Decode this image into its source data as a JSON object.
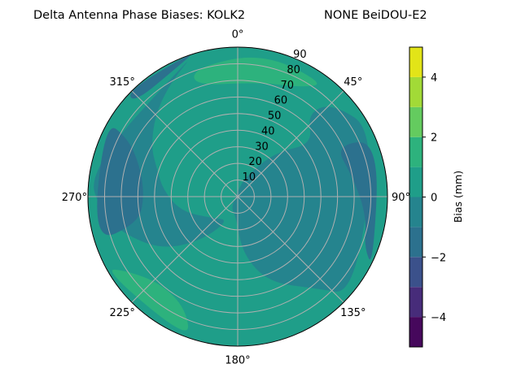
{
  "chart_data": {
    "type": "contour",
    "projection": "polar",
    "title_left": "Delta Antenna Phase Biases: KOLK2",
    "title_right": "NONE BeiDOU-E2",
    "angle_direction": "clockwise",
    "angle_zero": "north",
    "angle_ticks": [
      "0°",
      "45°",
      "90°",
      "135°",
      "180°",
      "225°",
      "270°",
      "315°"
    ],
    "angle_tick_values": [
      0,
      45,
      90,
      135,
      180,
      225,
      270,
      315
    ],
    "radial_range": [
      0,
      90
    ],
    "radial_ticks": [
      10,
      20,
      30,
      40,
      50,
      60,
      70,
      80,
      90
    ],
    "grid": true,
    "colormap": "viridis",
    "levels": [
      -5,
      -4,
      -3,
      -2,
      -1,
      0,
      1,
      2,
      3,
      4,
      5
    ],
    "level_colors": [
      "#46085c",
      "#472c7a",
      "#3b518b",
      "#2c718e",
      "#25848e",
      "#1f9e89",
      "#2db27d",
      "#64cb5f",
      "#a2da37",
      "#e2e418"
    ],
    "colorbar": {
      "label": "Bias (mm)",
      "ticks": [
        -4,
        -2,
        0,
        2,
        4
      ],
      "range": [
        -5,
        5
      ]
    },
    "background_value": 0.5,
    "regions": [
      {
        "value": -0.5,
        "points": [
          [
            20,
            12
          ],
          [
            40,
            35
          ],
          [
            55,
            55
          ],
          [
            40,
            65
          ],
          [
            45,
            80
          ],
          [
            65,
            92
          ],
          [
            130,
            92
          ],
          [
            140,
            72
          ],
          [
            160,
            55
          ],
          [
            175,
            35
          ],
          [
            185,
            12
          ],
          [
            210,
            8
          ],
          [
            0,
            3
          ]
        ]
      },
      {
        "value": -0.5,
        "points": [
          [
            200,
            15
          ],
          [
            220,
            35
          ],
          [
            235,
            55
          ],
          [
            250,
            70
          ],
          [
            262,
            82
          ],
          [
            280,
            92
          ],
          [
            345,
            92
          ],
          [
            330,
            80
          ],
          [
            315,
            70
          ],
          [
            300,
            60
          ],
          [
            290,
            52
          ],
          [
            275,
            45
          ],
          [
            255,
            35
          ],
          [
            230,
            20
          ]
        ]
      },
      {
        "value": -1.5,
        "points": [
          [
            255,
            62
          ],
          [
            252,
            92
          ],
          [
            300,
            92
          ],
          [
            298,
            75
          ],
          [
            288,
            62
          ],
          [
            270,
            56
          ]
        ]
      },
      {
        "value": -1.5,
        "points": [
          [
            62,
            66
          ],
          [
            68,
            92
          ],
          [
            118,
            92
          ],
          [
            112,
            82
          ],
          [
            98,
            78
          ],
          [
            80,
            70
          ]
        ]
      },
      {
        "value": -1.5,
        "points": [
          [
            312,
            84
          ],
          [
            314,
            92
          ],
          [
            345,
            92
          ],
          [
            335,
            86
          ]
        ]
      },
      {
        "value": 1.5,
        "points": [
          [
            338,
            72
          ],
          [
            342,
            82
          ],
          [
            10,
            88
          ],
          [
            38,
            86
          ],
          [
            30,
            76
          ],
          [
            10,
            70
          ]
        ]
      },
      {
        "value": 1.5,
        "points": [
          [
            205,
            74
          ],
          [
            198,
            92
          ],
          [
            242,
            92
          ],
          [
            236,
            80
          ],
          [
            222,
            70
          ]
        ]
      }
    ]
  }
}
